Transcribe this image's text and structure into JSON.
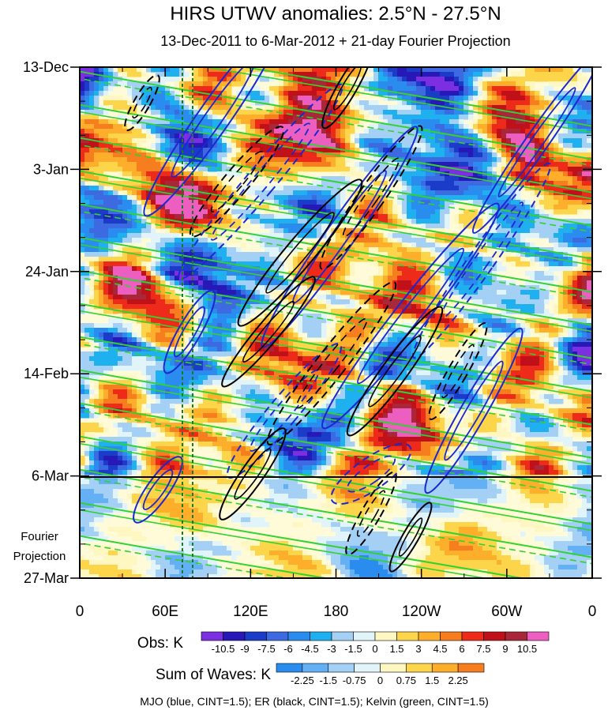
{
  "chart_data": {
    "type": "heatmap",
    "title": "HIRS UTWV anomalies: 2.5°N - 27.5°N",
    "subtitle": "13-Dec-2011 to 6-Mar-2012 + 21-day Fourier Projection",
    "xlabel": "",
    "ylabel": "",
    "x_ticks": [
      {
        "label": "0",
        "lon": 0
      },
      {
        "label": "60E",
        "lon": 60
      },
      {
        "label": "120E",
        "lon": 120
      },
      {
        "label": "180",
        "lon": 180
      },
      {
        "label": "120W",
        "lon": 240
      },
      {
        "label": "60W",
        "lon": 300
      },
      {
        "label": "0",
        "lon": 360
      }
    ],
    "xlim": [
      0,
      360
    ],
    "y_ticks": [
      {
        "label": "13-Dec",
        "day": 0
      },
      {
        "label": "3-Jan",
        "day": 21
      },
      {
        "label": "24-Jan",
        "day": 42
      },
      {
        "label": "14-Feb",
        "day": 63
      },
      {
        "label": "6-Mar",
        "day": 84
      },
      {
        "label": "27-Mar",
        "day": 105
      }
    ],
    "ylim_days": [
      0,
      105
    ],
    "grid": false,
    "projection_label_line1": "Fourier",
    "projection_label_line2": "Projection",
    "projection_start_day": 84,
    "reference_lines_lon": [
      72,
      78
    ],
    "obs_colorbar": {
      "label": "Obs: K",
      "tick_labels": [
        "-10.5",
        "-9",
        "-7.5",
        "-6",
        "-4.5",
        "-3",
        "-1.5",
        "0",
        "1.5",
        "3",
        "4.5",
        "6",
        "7.5",
        "9",
        "10.5"
      ],
      "colors": [
        "#7b2fe0",
        "#2818b8",
        "#1a3cc8",
        "#3d6ae0",
        "#2b8cf0",
        "#1fb0f0",
        "#a4d0f6",
        "#e0f4fa",
        "#fff7c2",
        "#fdd54a",
        "#fdae2a",
        "#f77e1e",
        "#ee2a1a",
        "#c0101a",
        "#a8283a",
        "#ec5fc0"
      ]
    },
    "waves_colorbar": {
      "label": "Sum of Waves: K",
      "tick_labels": [
        "-2.25",
        "-1.5",
        "-0.75",
        "0",
        "0.75",
        "1.5",
        "2.25"
      ],
      "colors": [
        "#2b8cf0",
        "#64b0f4",
        "#a4d0f6",
        "#e0f4fa",
        "#fff7c2",
        "#fdd54a",
        "#fdae2a",
        "#f77e1e"
      ]
    },
    "footnote": "MJO (blue, CINT=1.5); ER (black, CINT=1.5); Kelvin (green, CINT=1.5)",
    "series": [
      {
        "name": "MJO",
        "color": "#1a28d0"
      },
      {
        "name": "ER",
        "color": "#000000"
      },
      {
        "name": "Kelvin",
        "color": "#32d232"
      }
    ]
  }
}
